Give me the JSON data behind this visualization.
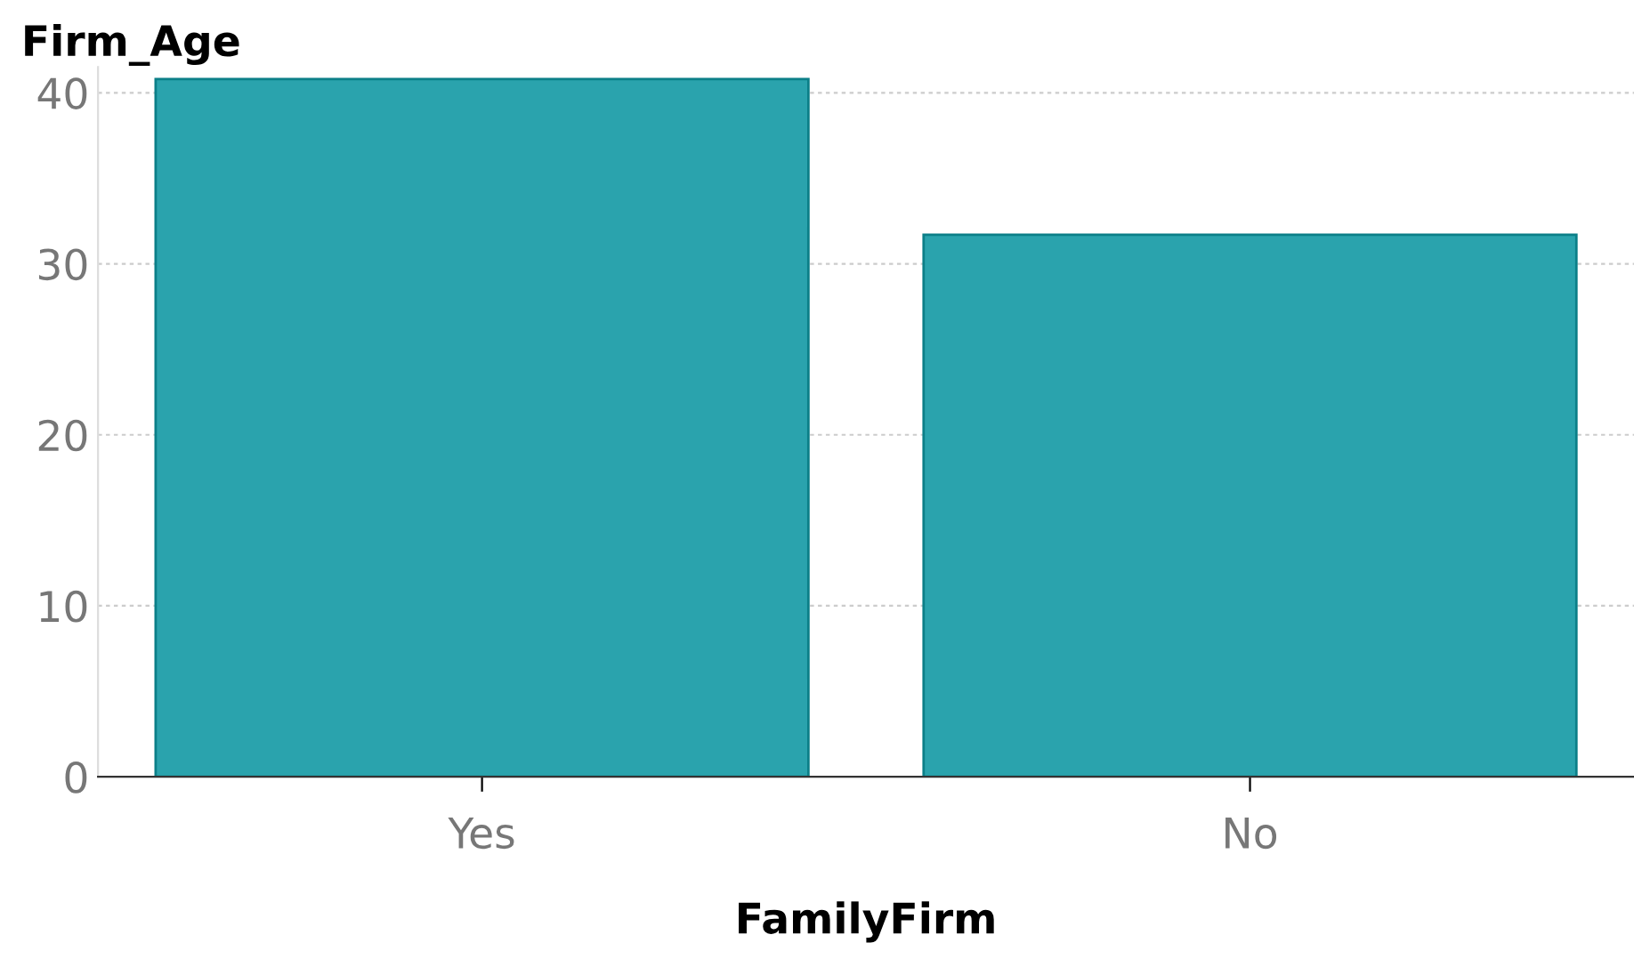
{
  "chart_data": {
    "type": "bar",
    "xlabel": "FamilyFirm",
    "ylabel": "Firm_Age",
    "categories": [
      "Yes",
      "No"
    ],
    "values": [
      40.8,
      31.7
    ],
    "color": "#2aa3ad",
    "ylim": [
      0,
      41.5
    ],
    "yticks": [
      0,
      10,
      20,
      30,
      40
    ],
    "grid": "y"
  }
}
